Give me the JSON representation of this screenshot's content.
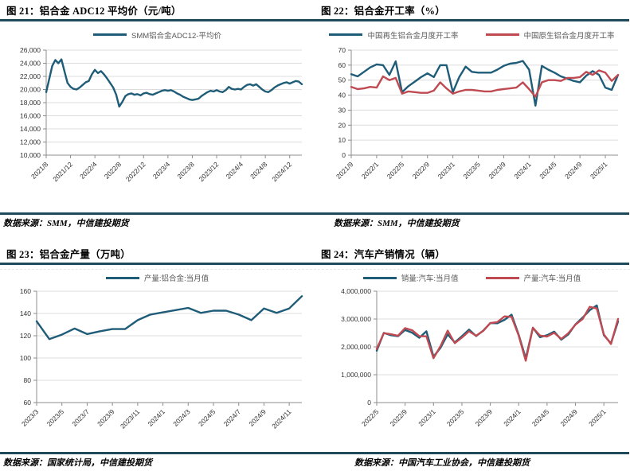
{
  "colors": {
    "rule": "#1E4A5A",
    "teal_line": "#1F5C78",
    "red_line": "#C04A52",
    "grid": "#DCDCDC",
    "axis": "#8C8C8C",
    "tick_text": "#333333",
    "legend_text": "#595959"
  },
  "chart_data": [
    {
      "id": "c21",
      "type": "line",
      "title": "图 21：铝合金 ADC12 平均价（元/吨）",
      "source": "数据来源：SMM，中信建投期货",
      "ylim": [
        10000,
        26000
      ],
      "yticks": [
        {
          "v": 10000,
          "label": "10,000"
        },
        {
          "v": 12000,
          "label": "12,000"
        },
        {
          "v": 14000,
          "label": "14,000"
        },
        {
          "v": 16000,
          "label": "16,000"
        },
        {
          "v": 18000,
          "label": "18,000"
        },
        {
          "v": 20000,
          "label": "20,000"
        },
        {
          "v": 22000,
          "label": "22,000"
        },
        {
          "v": 24000,
          "label": "24,000"
        },
        {
          "v": 26000,
          "label": "26,000"
        }
      ],
      "xticks": [
        {
          "i": 0,
          "label": "2021/8"
        },
        {
          "i": 8,
          "label": "2021/12"
        },
        {
          "i": 16,
          "label": "2022/4"
        },
        {
          "i": 24,
          "label": "2022/8"
        },
        {
          "i": 32,
          "label": "2022/12"
        },
        {
          "i": 40,
          "label": "2023/4"
        },
        {
          "i": 48,
          "label": "2023/8"
        },
        {
          "i": 56,
          "label": "2023/12"
        },
        {
          "i": 64,
          "label": "2024/4"
        },
        {
          "i": 72,
          "label": "2024/8"
        },
        {
          "i": 80,
          "label": "2024/12"
        }
      ],
      "n": 85,
      "series": [
        {
          "name": "SMM铝合金ADC12-平均价",
          "color": "#1F5C78",
          "values": [
            19600,
            21600,
            23600,
            24500,
            24000,
            24600,
            22800,
            21000,
            20400,
            20100,
            20000,
            20300,
            20700,
            21100,
            21300,
            22300,
            23000,
            22500,
            22800,
            22300,
            21700,
            21000,
            20300,
            19200,
            17400,
            18100,
            19000,
            19300,
            19400,
            19200,
            19300,
            19100,
            19400,
            19500,
            19300,
            19200,
            19400,
            19600,
            19800,
            19900,
            19800,
            19900,
            19700,
            19400,
            19200,
            18900,
            18700,
            18500,
            18400,
            18500,
            18600,
            19000,
            19300,
            19600,
            19800,
            19700,
            19900,
            19700,
            19600,
            19900,
            20400,
            20100,
            20000,
            20100,
            20000,
            20400,
            20700,
            20800,
            20600,
            20800,
            20400,
            20000,
            19700,
            19600,
            19900,
            20300,
            20600,
            20800,
            21000,
            21100,
            20900,
            21100,
            21300,
            21200,
            20800
          ]
        }
      ]
    },
    {
      "id": "c22",
      "type": "line",
      "title": "图 22：铝合金开工率（%）",
      "source": "数据来源：SMM，中信建投期货",
      "ylim": [
        0,
        70
      ],
      "yticks": [
        {
          "v": 0,
          "label": "0"
        },
        {
          "v": 10,
          "label": "10"
        },
        {
          "v": 20,
          "label": "20"
        },
        {
          "v": 30,
          "label": "30"
        },
        {
          "v": 40,
          "label": "40"
        },
        {
          "v": 50,
          "label": "50"
        },
        {
          "v": 60,
          "label": "60"
        },
        {
          "v": 70,
          "label": "70"
        }
      ],
      "xticks": [
        {
          "i": 0,
          "label": "2021/9"
        },
        {
          "i": 4,
          "label": "2022/1"
        },
        {
          "i": 8,
          "label": "2022/5"
        },
        {
          "i": 12,
          "label": "2022/9"
        },
        {
          "i": 16,
          "label": "2023/1"
        },
        {
          "i": 20,
          "label": "2023/5"
        },
        {
          "i": 24,
          "label": "2023/9"
        },
        {
          "i": 28,
          "label": "2024/1"
        },
        {
          "i": 32,
          "label": "2024/5"
        },
        {
          "i": 36,
          "label": "2024/9"
        },
        {
          "i": 40,
          "label": "2025/1"
        }
      ],
      "n": 43,
      "series": [
        {
          "name": "中国再生铝合金月度开工率",
          "color": "#1F5C78",
          "values": [
            54,
            52.5,
            55.5,
            58.5,
            60.5,
            60,
            53.5,
            62.5,
            42,
            46,
            49,
            52,
            54.5,
            52,
            60,
            60,
            42,
            52,
            59,
            55.5,
            55,
            55,
            55,
            57,
            59.5,
            61,
            61.5,
            62.8,
            57,
            33,
            59.5,
            57,
            55,
            52.5,
            51,
            49.5,
            48.5,
            53,
            56,
            53.5,
            45,
            43.5,
            53.5
          ]
        },
        {
          "name": "中国原生铝合金月度开工率",
          "color": "#C04A52",
          "values": [
            45.5,
            44,
            44.5,
            45.5,
            45,
            52.5,
            50,
            51.5,
            41,
            42.5,
            42,
            41.5,
            41.5,
            43,
            48.5,
            44.5,
            41,
            42.5,
            43.5,
            43.5,
            43,
            42.5,
            42.5,
            43.5,
            44,
            44.5,
            45,
            48.5,
            44,
            39,
            48.5,
            50,
            50,
            49.5,
            51.5,
            51.5,
            52,
            55.5,
            53.5,
            56.5,
            55,
            49.5,
            53.5
          ]
        }
      ]
    },
    {
      "id": "c23",
      "type": "line",
      "title": "图 23：铝合金产量（万吨）",
      "source": "数据来源：国家统计局，中信建投期货",
      "ylim": [
        60,
        160
      ],
      "yticks": [
        {
          "v": 60,
          "label": "60"
        },
        {
          "v": 80,
          "label": "80"
        },
        {
          "v": 100,
          "label": "100"
        },
        {
          "v": 120,
          "label": "120"
        },
        {
          "v": 140,
          "label": "140"
        },
        {
          "v": 160,
          "label": "160"
        }
      ],
      "xticks": [
        {
          "i": 0,
          "label": "2023/3"
        },
        {
          "i": 2,
          "label": "2023/5"
        },
        {
          "i": 4,
          "label": "2023/7"
        },
        {
          "i": 6,
          "label": "2023/9"
        },
        {
          "i": 8,
          "label": "2023/11"
        },
        {
          "i": 10,
          "label": "2024/1"
        },
        {
          "i": 12,
          "label": "2024/3"
        },
        {
          "i": 14,
          "label": "2024/5"
        },
        {
          "i": 16,
          "label": "2024/7"
        },
        {
          "i": 18,
          "label": "2024/9"
        },
        {
          "i": 20,
          "label": "2024/11"
        }
      ],
      "n": 22,
      "series": [
        {
          "name": "产量:铝合金:当月值",
          "color": "#1F5C78",
          "values": [
            133,
            117,
            121,
            126.5,
            121.5,
            124,
            126,
            126,
            134,
            139,
            141,
            143,
            145,
            140.5,
            142.5,
            142.5,
            139,
            134,
            144.5,
            140.5,
            144.5,
            155.5
          ]
        }
      ]
    },
    {
      "id": "c24",
      "type": "line",
      "title": "图 24：汽车产销情况（辆）",
      "source": "数据来源：中国汽车工业协会，中信建投期货",
      "ylim": [
        0,
        4000000
      ],
      "yticks": [
        {
          "v": 0,
          "label": "0"
        },
        {
          "v": 1000000,
          "label": "1,000,000"
        },
        {
          "v": 2000000,
          "label": "2,000,000"
        },
        {
          "v": 3000000,
          "label": "3,000,000"
        },
        {
          "v": 4000000,
          "label": "4,000,000"
        }
      ],
      "xticks": [
        {
          "i": 0,
          "label": "2022/5"
        },
        {
          "i": 4,
          "label": "2022/9"
        },
        {
          "i": 8,
          "label": "2023/1"
        },
        {
          "i": 12,
          "label": "2023/5"
        },
        {
          "i": 16,
          "label": "2023/9"
        },
        {
          "i": 20,
          "label": "2024/1"
        },
        {
          "i": 24,
          "label": "2024/5"
        },
        {
          "i": 28,
          "label": "2024/9"
        },
        {
          "i": 32,
          "label": "2025/1"
        }
      ],
      "n": 35,
      "series": [
        {
          "name": "销量:汽车:当月值",
          "color": "#1F5C78",
          "values": [
            1862000,
            2502000,
            2420000,
            2383000,
            2610000,
            2505000,
            2328000,
            2559000,
            1649000,
            1972000,
            2452000,
            2159000,
            2382000,
            2622000,
            2388000,
            2582000,
            2855000,
            2850000,
            2970000,
            3156000,
            2439000,
            1585000,
            2690000,
            2350000,
            2420000,
            2550000,
            2260000,
            2450000,
            2809000,
            3050000,
            3316000,
            3489000,
            2420000,
            2129000,
            2915000
          ]
        },
        {
          "name": "产量:汽车:当月值",
          "color": "#C04A52",
          "values": [
            1926000,
            2494000,
            2455000,
            2399000,
            2675000,
            2593000,
            2382000,
            2381000,
            1594000,
            2032000,
            2584000,
            2134000,
            2333000,
            2561000,
            2401000,
            2575000,
            2853000,
            2892000,
            3093000,
            3078000,
            2411000,
            1503000,
            2687000,
            2406000,
            2372000,
            2507000,
            2286000,
            2492000,
            2796000,
            2996000,
            3437000,
            3379000,
            2446000,
            2103000,
            3006000
          ]
        }
      ]
    }
  ]
}
